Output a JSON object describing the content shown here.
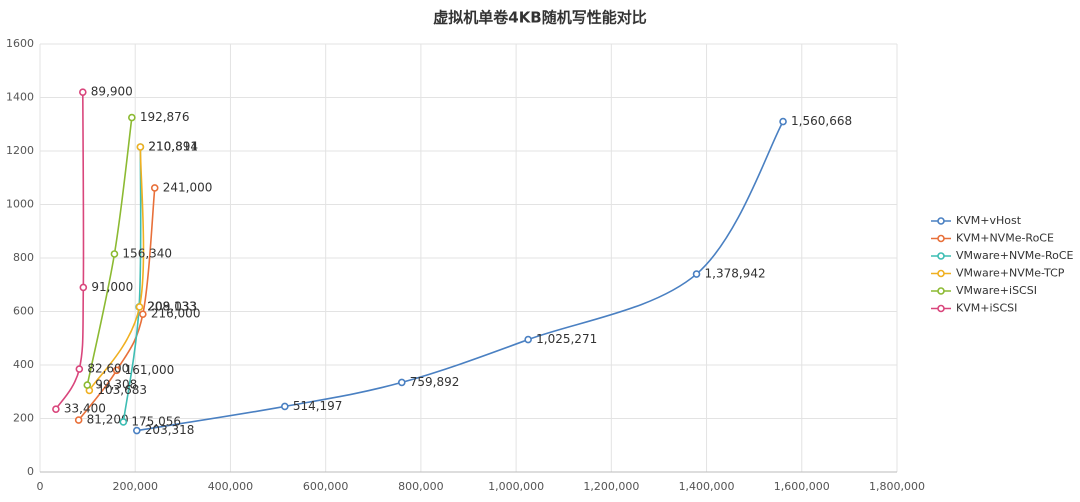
{
  "chart_data": {
    "type": "line",
    "title": "虚拟机单卷4KB随机写性能对比",
    "xlim": [
      0,
      1800000
    ],
    "xticks": [
      0,
      {
        "value": 200000,
        "label": "200,000"
      },
      {
        "value": 400000,
        "label": "400,000"
      },
      {
        "value": 600000,
        "label": "600,000"
      },
      {
        "value": 800000,
        "label": "800,000"
      },
      {
        "value": 1000000,
        "label": "1,000,000"
      },
      {
        "value": 1200000,
        "label": "1,200,000"
      },
      {
        "value": 1400000,
        "label": "1,400,000"
      },
      {
        "value": 1600000,
        "label": "1,600,000"
      },
      {
        "value": 1800000,
        "label": "1,800,000"
      }
    ],
    "ylim": [
      0,
      1600
    ],
    "yticks": [
      0,
      200,
      400,
      600,
      800,
      1000,
      1200,
      1400,
      1600
    ],
    "grid": true,
    "legend": "right",
    "smooth": true,
    "series": [
      {
        "name": "KVM+vHost",
        "color": "#4a80c2",
        "x": [
          203318,
          514197,
          759892,
          1025271,
          1378942,
          1560668
        ],
        "values": [
          155,
          245,
          335,
          495,
          740,
          1310
        ],
        "x_labels": [
          "203,318",
          "514,197",
          "759,892",
          "1,025,271",
          "1,378,942",
          "1,560,668"
        ]
      },
      {
        "name": "KVM+NVMe-RoCE",
        "color": "#e8703a",
        "x": [
          81200,
          161000,
          216000,
          241000
        ],
        "values": [
          194,
          380,
          590,
          1062
        ],
        "x_labels": [
          "81,200",
          "161,000",
          "216,000",
          "241,000"
        ]
      },
      {
        "name": "VMware+NVMe-RoCE",
        "color": "#3dbdb3",
        "x": [
          175056,
          208133,
          210891
        ],
        "values": [
          187,
          617,
          1215
        ],
        "x_labels": [
          "175,056",
          "208,133",
          "210,891"
        ]
      },
      {
        "name": "VMware+NVMe-TCP",
        "color": "#f0b021",
        "x": [
          103683,
          209033,
          210814
        ],
        "values": [
          305,
          617,
          1215
        ],
        "x_labels": [
          "103,683",
          "209,033",
          "210,814"
        ]
      },
      {
        "name": "VMware+iSCSI",
        "color": "#8cba32",
        "x": [
          99308,
          156340,
          192876
        ],
        "values": [
          325,
          815,
          1325
        ],
        "x_labels": [
          "99,308",
          "156,340",
          "192,876"
        ]
      },
      {
        "name": "KVM+iSCSI",
        "color": "#d9467c",
        "x": [
          33400,
          82600,
          91000,
          89900
        ],
        "values": [
          235,
          385,
          690,
          1420
        ],
        "x_labels": [
          "33,400",
          "82,600",
          "91,000",
          "89,900"
        ]
      }
    ]
  }
}
